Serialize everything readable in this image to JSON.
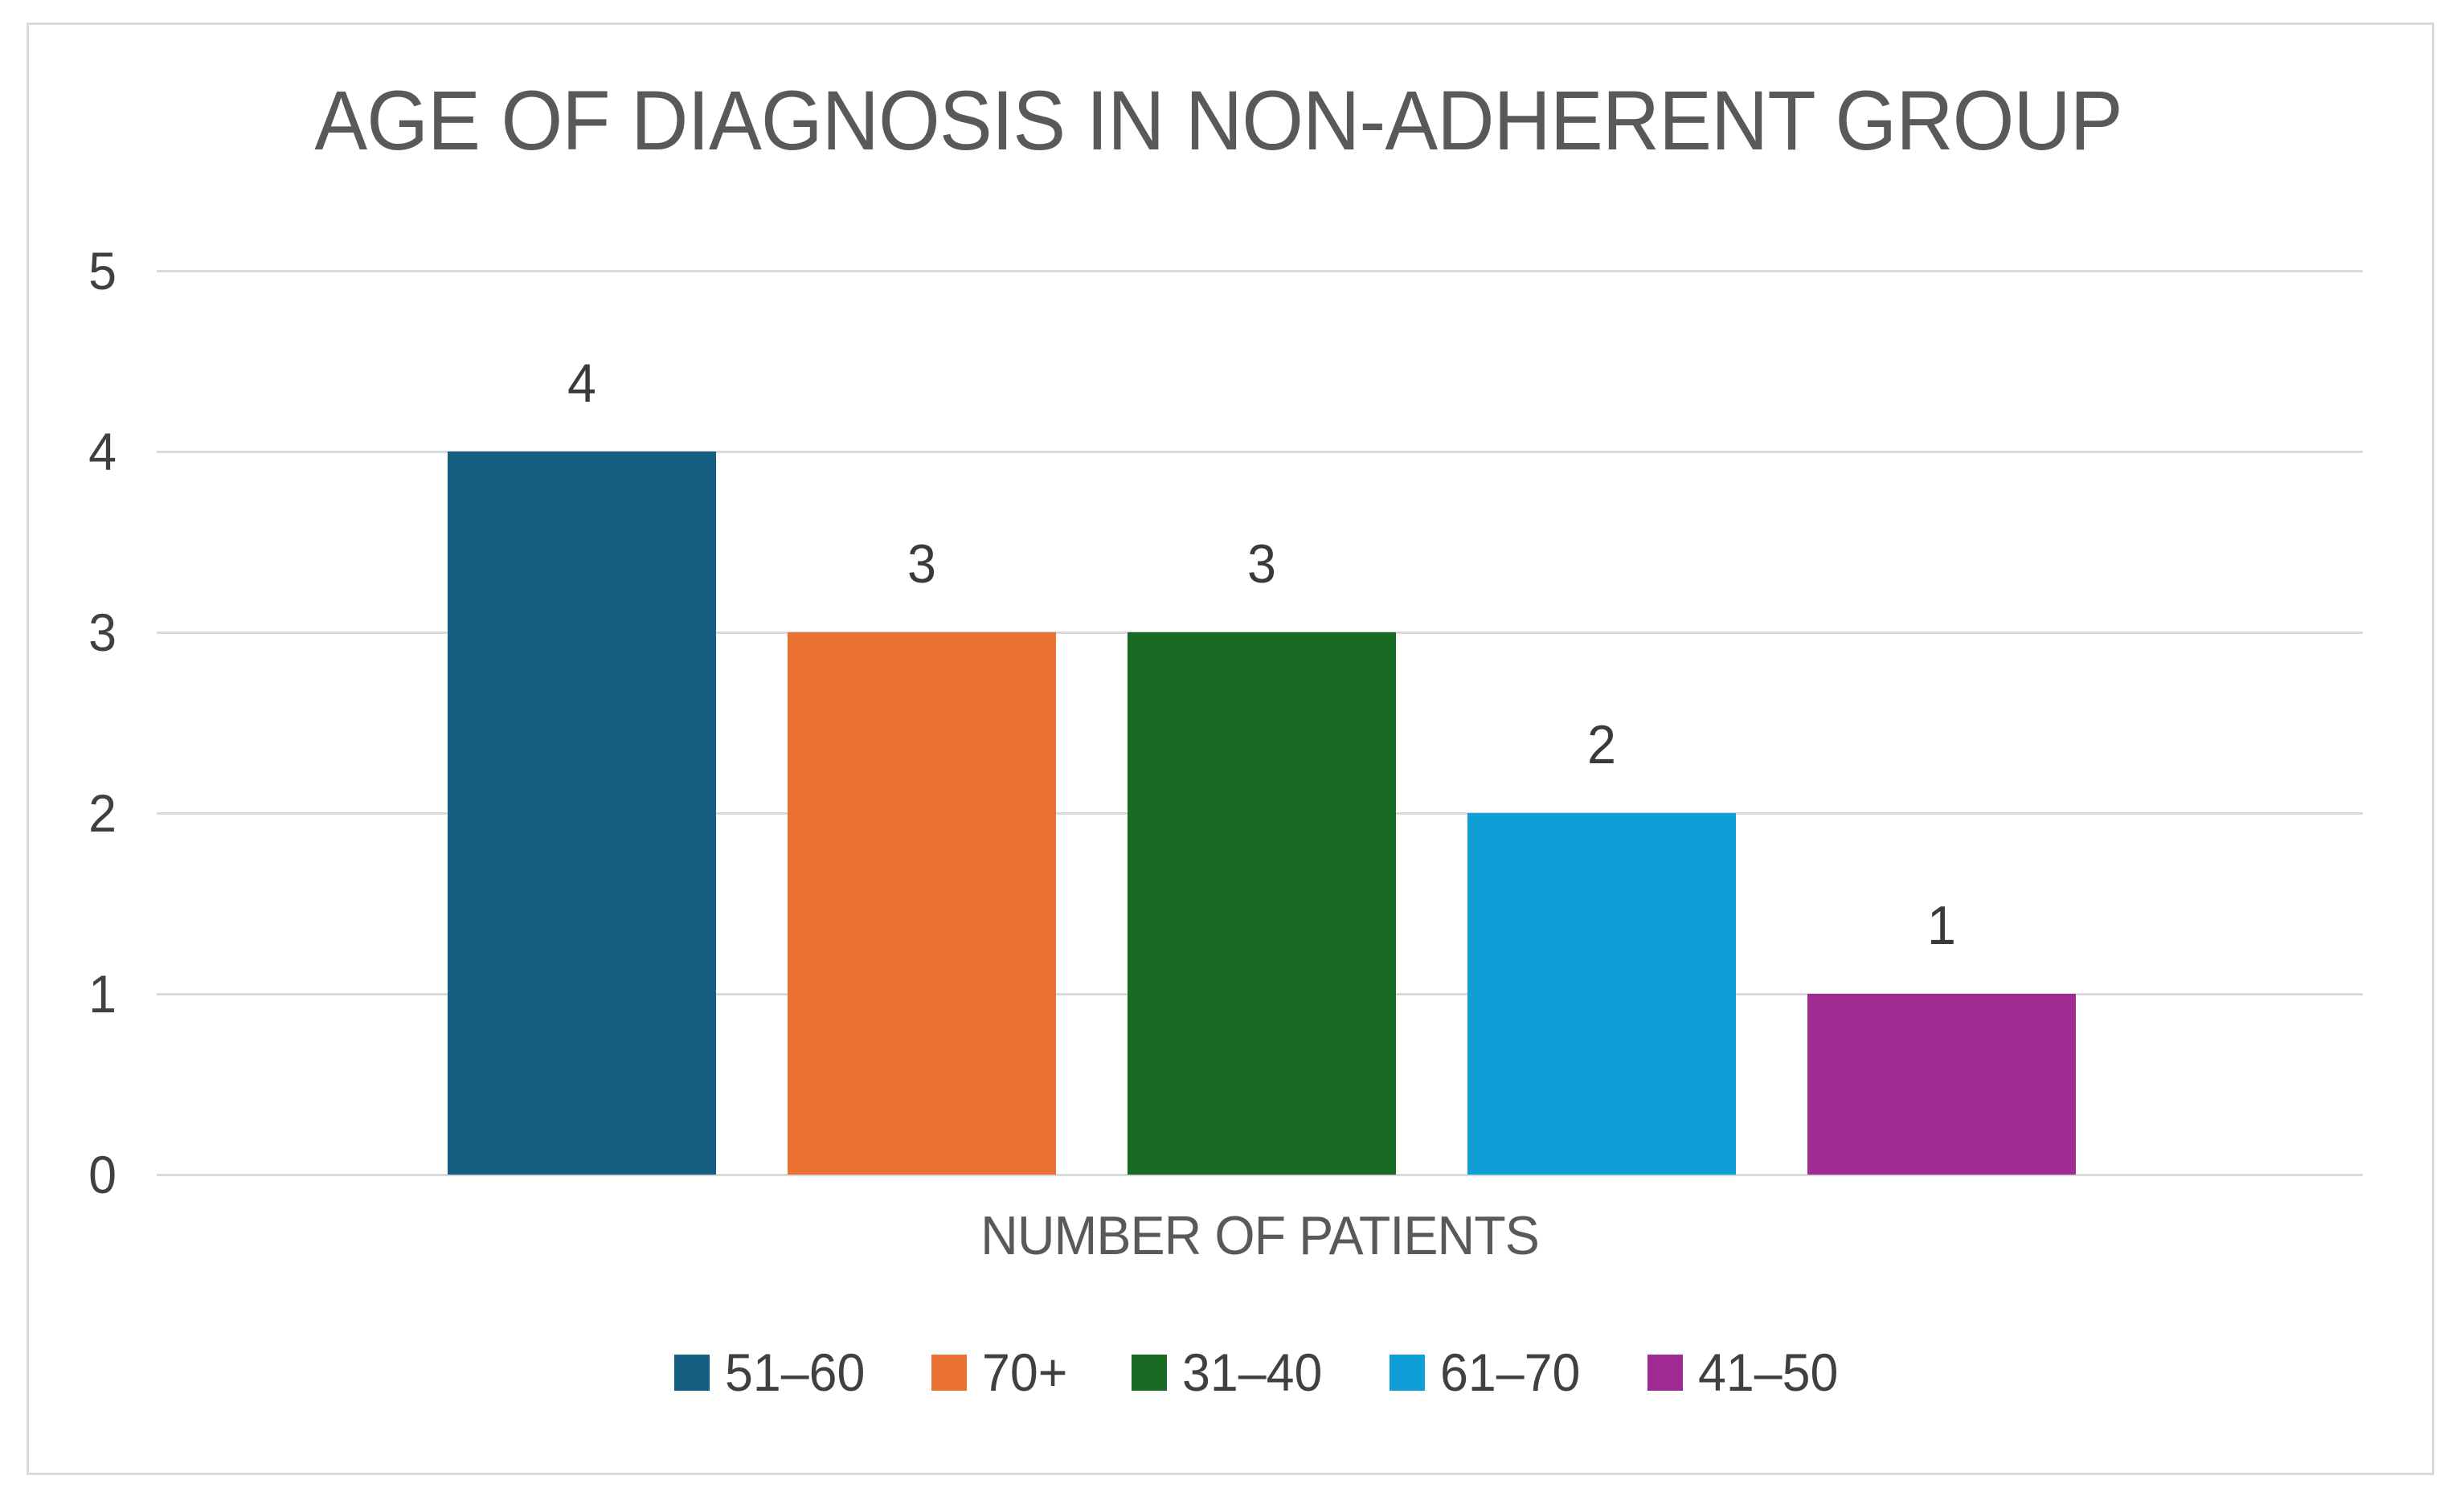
{
  "chart_data": {
    "type": "bar",
    "title": "AGE OF DIAGNOSIS IN NON-ADHERENT GROUP",
    "xlabel": "NUMBER OF PATIENTS",
    "ylabel": "",
    "ylim": [
      0,
      5
    ],
    "yticks": [
      0,
      1,
      2,
      3,
      4,
      5
    ],
    "grid": true,
    "legend_position": "bottom",
    "series": [
      {
        "name": "51–60",
        "value": 4,
        "color": "#156082"
      },
      {
        "name": "70+",
        "value": 3,
        "color": "#E97132"
      },
      {
        "name": "31–40",
        "value": 3,
        "color": "#196B24"
      },
      {
        "name": "61–70",
        "value": 2,
        "color": "#0F9ED5"
      },
      {
        "name": "41–50",
        "value": 1,
        "color": "#A02B93"
      }
    ],
    "data_labels": [
      4,
      3,
      3,
      2,
      1
    ]
  },
  "colors": {
    "title_text": "#595959",
    "tick_text": "#404040",
    "data_label_text": "#3A3A3A",
    "gridline": "#D9D9D9",
    "frame_border": "#D9D9D9",
    "background": "#FFFFFF"
  }
}
